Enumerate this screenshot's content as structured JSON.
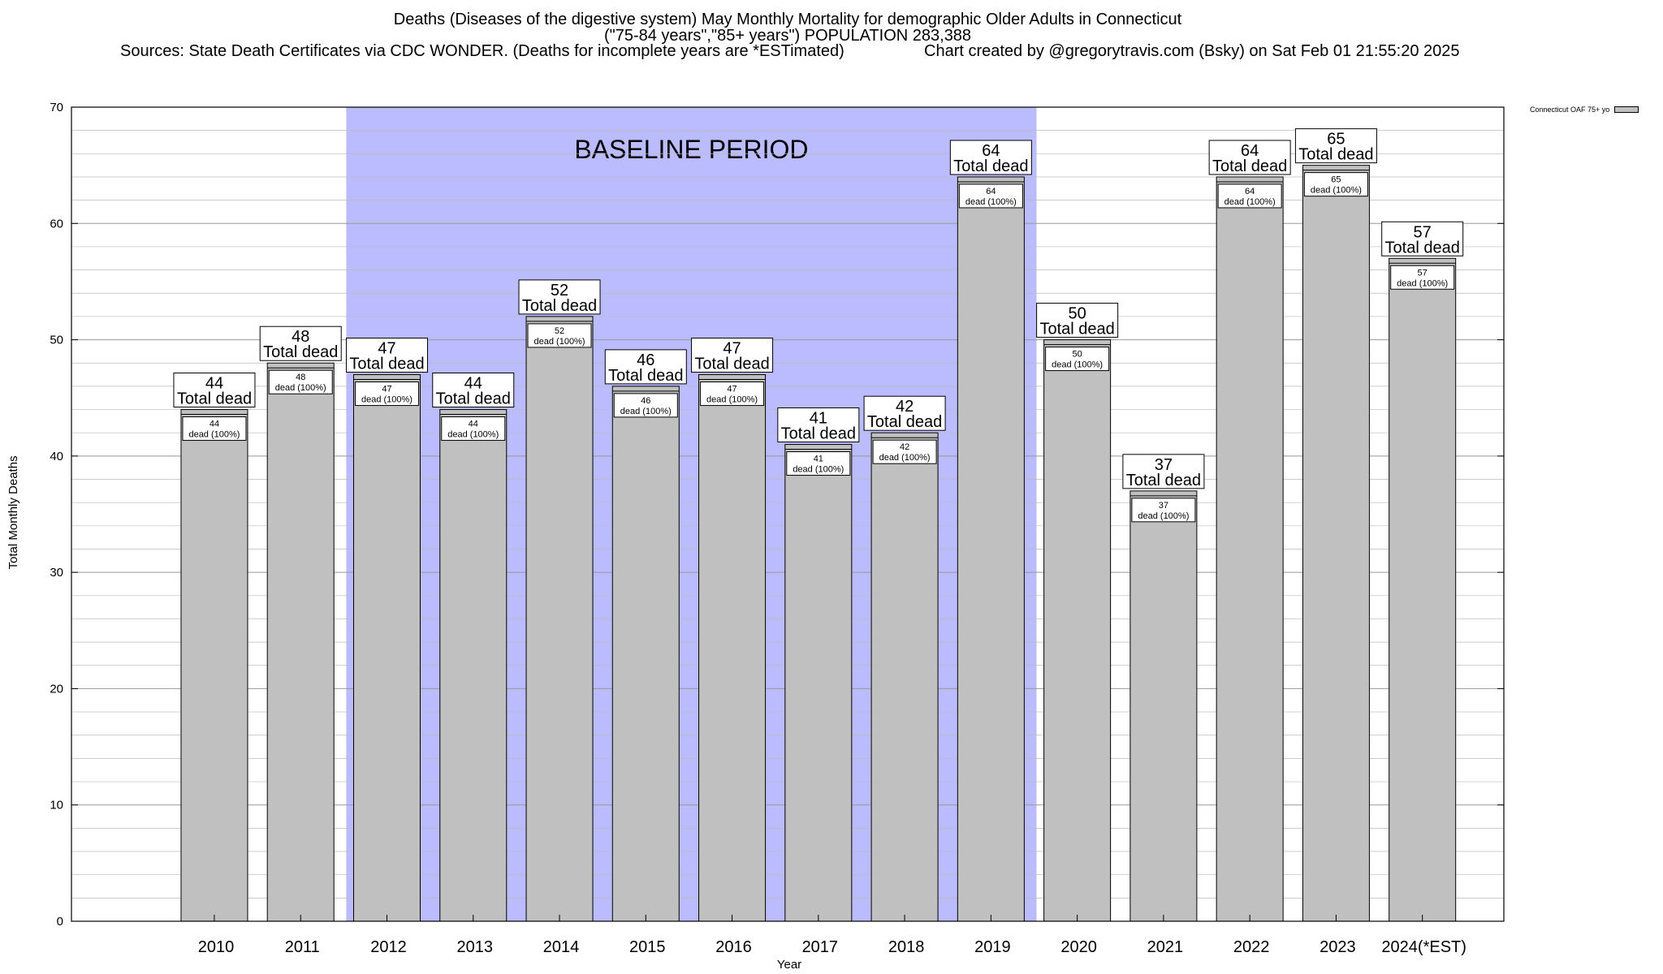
{
  "header": {
    "title_line1": "Deaths (Diseases of the digestive system) May Monthly Mortality for demographic Older Adults in Connecticut",
    "title_line2": "(\"75-84 years\",\"85+ years\") POPULATION 283,388",
    "sources": "Sources: State Death Certificates via CDC WONDER. (Deaths for incomplete years are *ESTimated)",
    "credit": "Chart created by @gregorytravis.com (Bsky) on Sat Feb 01 21:55:20 2025"
  },
  "chart_data": {
    "type": "bar",
    "categories": [
      "2010",
      "2011",
      "2012",
      "2013",
      "2014",
      "2015",
      "2016",
      "2017",
      "2018",
      "2019",
      "2020",
      "2021",
      "2022",
      "2023",
      "2024(*EST)"
    ],
    "series": [
      {
        "name": "Connecticut OAF 75+ yo",
        "values": [
          44,
          48,
          47,
          44,
          52,
          46,
          47,
          41,
          42,
          64,
          50,
          37,
          64,
          65,
          57
        ]
      }
    ],
    "total_label": "Total dead",
    "inner_label": "dead (100%)",
    "xlabel": "Year",
    "ylabel": "Total Monthly Deaths",
    "ylim": [
      0,
      70
    ],
    "yticks": [
      0,
      10,
      20,
      30,
      40,
      50,
      60,
      70
    ],
    "baseline": {
      "label": "BASELINE PERIOD",
      "start": "2012",
      "end": "2019",
      "color": "#bbbbff"
    },
    "bar_color": "#c0c0c0",
    "grid": true,
    "legend_position": "top-right"
  }
}
